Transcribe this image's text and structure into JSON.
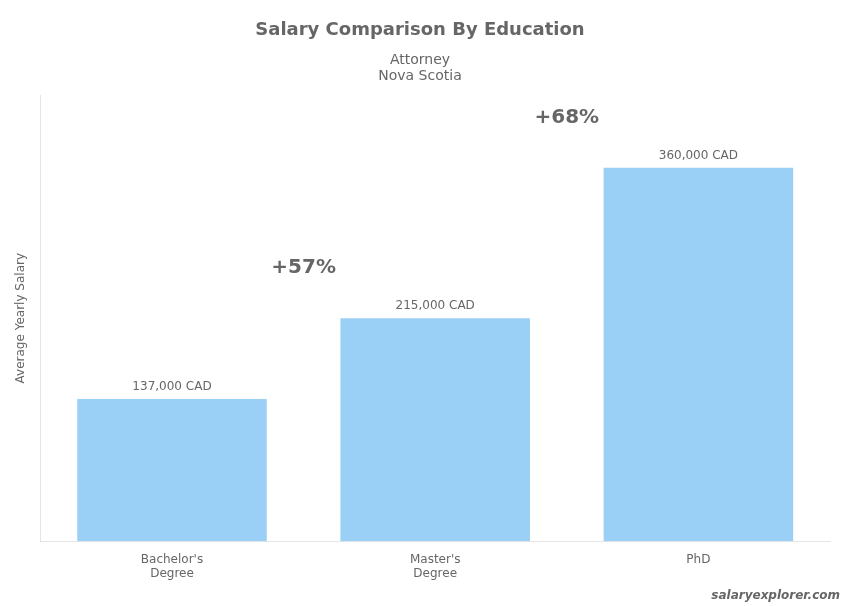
{
  "chart_data": {
    "type": "bar",
    "title": "Salary Comparison By Education",
    "subtitle": [
      "Attorney",
      "Nova Scotia"
    ],
    "ylabel": "Average Yearly Salary",
    "categories": [
      "Bachelor's\nDegree",
      "Master's\nDegree",
      "PhD"
    ],
    "values": [
      137000,
      215000,
      360000
    ],
    "value_labels": [
      "137,000 CAD",
      "215,000 CAD",
      "360,000 CAD"
    ],
    "data_labels": true,
    "annotations": [
      "+57%",
      "+68%"
    ],
    "watermark": "salaryexplorer.com",
    "ylim": [
      0,
      430000
    ],
    "tick_labels": "x",
    "grid": false
  }
}
